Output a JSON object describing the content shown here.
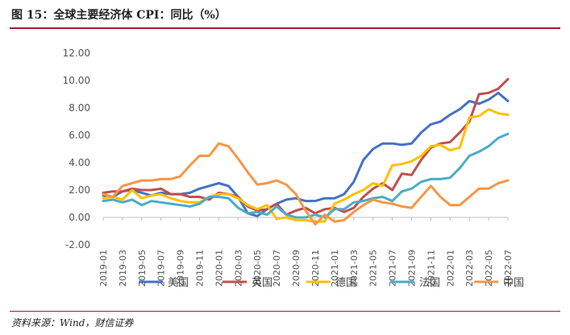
{
  "header": {
    "title": "图 15：全球主要经济体 CPI：同比（%）"
  },
  "footer": {
    "source": "资料来源：Wind，财信证券"
  },
  "chart_data": {
    "type": "line",
    "title": "图 15：全球主要经济体 CPI：同比（%）",
    "xlabel": "",
    "ylabel": "",
    "ylim": [
      -2,
      12
    ],
    "yticks": [
      "12.00",
      "10.00",
      "8.00",
      "6.00",
      "4.00",
      "2.00",
      "0.00",
      "-2.00"
    ],
    "ytick_values": [
      12,
      10,
      8,
      6,
      4,
      2,
      0,
      -2
    ],
    "x_tick_labels": [
      "2019-01",
      "2019-03",
      "2019-05",
      "2019-07",
      "2019-09",
      "2019-11",
      "2020-01",
      "2020-03",
      "2020-05",
      "2020-07",
      "2020-09",
      "2020-11",
      "2021-01",
      "2021-03",
      "2021-05",
      "2021-07",
      "2021-09",
      "2021-11",
      "2022-01",
      "2022-03",
      "2022-05",
      "2022-07"
    ],
    "x": [
      "2019-01",
      "2019-02",
      "2019-03",
      "2019-04",
      "2019-05",
      "2019-06",
      "2019-07",
      "2019-08",
      "2019-09",
      "2019-10",
      "2019-11",
      "2019-12",
      "2020-01",
      "2020-02",
      "2020-03",
      "2020-04",
      "2020-05",
      "2020-06",
      "2020-07",
      "2020-08",
      "2020-09",
      "2020-10",
      "2020-11",
      "2020-12",
      "2021-01",
      "2021-02",
      "2021-03",
      "2021-04",
      "2021-05",
      "2021-06",
      "2021-07",
      "2021-08",
      "2021-09",
      "2021-10",
      "2021-11",
      "2021-12",
      "2022-01",
      "2022-02",
      "2022-03",
      "2022-04",
      "2022-05",
      "2022-06",
      "2022-07"
    ],
    "grid": false,
    "legend_position": "bottom",
    "series": [
      {
        "name": "美国",
        "color": "#4472c4",
        "values": [
          1.6,
          1.5,
          1.9,
          2.0,
          1.8,
          1.6,
          1.8,
          1.7,
          1.7,
          1.8,
          2.1,
          2.3,
          2.5,
          2.3,
          1.5,
          0.3,
          0.1,
          0.6,
          1.0,
          1.3,
          1.4,
          1.2,
          1.2,
          1.4,
          1.4,
          1.7,
          2.6,
          4.2,
          5.0,
          5.4,
          5.4,
          5.3,
          5.4,
          6.2,
          6.8,
          7.0,
          7.5,
          7.9,
          8.5,
          8.3,
          8.6,
          9.1,
          8.5
        ]
      },
      {
        "name": "英国",
        "color": "#c0504d",
        "values": [
          1.8,
          1.9,
          1.9,
          2.1,
          2.0,
          2.0,
          2.1,
          1.7,
          1.7,
          1.5,
          1.5,
          1.3,
          1.8,
          1.7,
          1.5,
          0.8,
          0.5,
          0.6,
          1.0,
          0.2,
          0.5,
          0.7,
          0.3,
          0.6,
          0.7,
          0.4,
          0.7,
          1.5,
          2.1,
          2.5,
          2.0,
          3.2,
          3.1,
          4.2,
          5.1,
          5.4,
          5.5,
          6.2,
          7.0,
          9.0,
          9.1,
          9.4,
          10.1
        ]
      },
      {
        "name": "德国",
        "color": "#ffc000",
        "values": [
          1.4,
          1.5,
          1.3,
          2.0,
          1.4,
          1.6,
          1.7,
          1.4,
          1.2,
          1.1,
          1.1,
          1.5,
          1.7,
          1.7,
          1.4,
          0.9,
          0.6,
          0.9,
          -0.1,
          0.0,
          -0.2,
          -0.2,
          -0.3,
          -0.3,
          1.0,
          1.3,
          1.7,
          2.0,
          2.5,
          2.3,
          3.8,
          3.9,
          4.1,
          4.5,
          5.2,
          5.3,
          4.9,
          5.1,
          7.3,
          7.4,
          7.9,
          7.6,
          7.5
        ]
      },
      {
        "name": "法国",
        "color": "#4bacc6",
        "values": [
          1.2,
          1.3,
          1.1,
          1.3,
          0.9,
          1.2,
          1.1,
          1.0,
          0.9,
          0.8,
          1.0,
          1.5,
          1.5,
          1.4,
          0.7,
          0.3,
          0.4,
          0.2,
          0.8,
          0.2,
          0.0,
          0.0,
          0.2,
          0.0,
          0.6,
          0.6,
          1.1,
          1.2,
          1.4,
          1.5,
          1.2,
          1.9,
          2.1,
          2.6,
          2.8,
          2.8,
          2.9,
          3.6,
          4.5,
          4.8,
          5.2,
          5.8,
          6.1
        ]
      },
      {
        "name": "中国",
        "color": "#f79646",
        "values": [
          1.7,
          1.5,
          2.3,
          2.5,
          2.7,
          2.7,
          2.8,
          2.8,
          3.0,
          3.8,
          4.5,
          4.5,
          5.4,
          5.2,
          4.3,
          3.3,
          2.4,
          2.5,
          2.7,
          2.4,
          1.7,
          0.5,
          -0.5,
          0.2,
          -0.3,
          -0.2,
          0.4,
          0.9,
          1.3,
          1.1,
          1.0,
          0.8,
          0.7,
          1.5,
          2.3,
          1.5,
          0.9,
          0.9,
          1.5,
          2.1,
          2.1,
          2.5,
          2.7
        ]
      }
    ]
  }
}
